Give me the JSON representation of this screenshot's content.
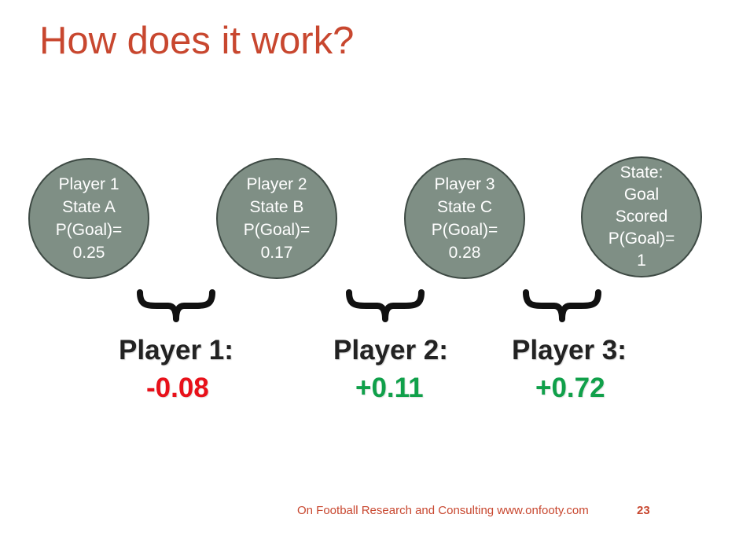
{
  "title": "How does it work?",
  "states": [
    {
      "lines": [
        "Player 1",
        "State A",
        "P(Goal)=",
        "0.25"
      ]
    },
    {
      "lines": [
        "Player 2",
        "State B",
        "P(Goal)=",
        "0.17"
      ]
    },
    {
      "lines": [
        "Player 3",
        "State C",
        "P(Goal)=",
        "0.28"
      ]
    },
    {
      "lines": [
        "State:",
        "Goal",
        "Scored",
        "P(Goal)=",
        "1"
      ]
    }
  ],
  "players": [
    {
      "label": "Player 1:",
      "value": "-0.08",
      "color": "#e8111a"
    },
    {
      "label": "Player 2:",
      "value": "+0.11",
      "color": "#10a04a"
    },
    {
      "label": "Player 3:",
      "value": "+0.72",
      "color": "#10a04a"
    }
  ],
  "colors": {
    "title": "#c8472f",
    "circle_fill": "#7f8f85",
    "circle_border": "#3e4a44",
    "negative": "#e8111a",
    "positive": "#10a04a"
  },
  "footer": {
    "text": "On Football Research and Consulting www.onfooty.com",
    "page": "23"
  }
}
